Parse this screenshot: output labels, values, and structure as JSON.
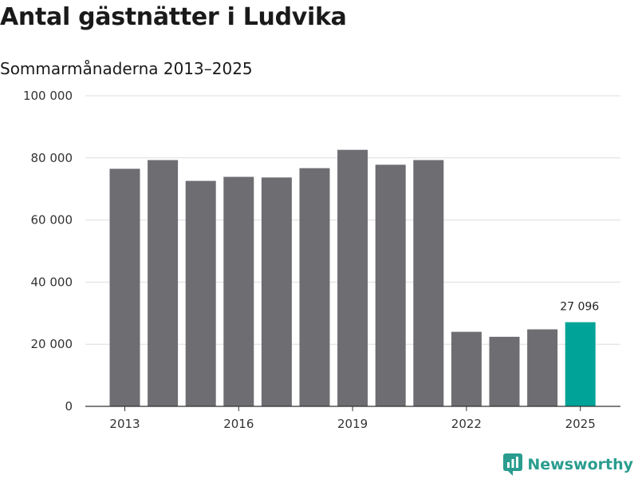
{
  "header": {
    "title": "Antal gästnätter i Ludvika",
    "subtitle": "Sommarmånaderna 2013–2025"
  },
  "brand": {
    "name": "Newsworthy",
    "icon": "newsworthy-logo-icon",
    "color": "#2a9d8f"
  },
  "chart_data": {
    "type": "bar",
    "title": "Antal gästnätter i Ludvika",
    "subtitle": "Sommarmånaderna 2013–2025",
    "xlabel": "",
    "ylabel": "",
    "categories": [
      "2013",
      "2014",
      "2015",
      "2016",
      "2017",
      "2018",
      "2019",
      "2020",
      "2021",
      "2022",
      "2023",
      "2024",
      "2025"
    ],
    "values": [
      76500,
      79300,
      72600,
      73900,
      73700,
      76700,
      82600,
      77800,
      79300,
      24000,
      22400,
      24800,
      27096
    ],
    "ylim": [
      0,
      100000
    ],
    "yticks": [
      0,
      20000,
      40000,
      60000,
      80000,
      100000
    ],
    "ytick_labels": [
      "0",
      "20 000",
      "40 000",
      "60 000",
      "80 000",
      "100 000"
    ],
    "xtick_labels": [
      "2013",
      "2016",
      "2019",
      "2022",
      "2025"
    ],
    "highlight_index": 12,
    "highlight_label": "27 096",
    "grid": true,
    "colors": {
      "bar": "#6e6d72",
      "highlight": "#00a397",
      "grid": "#dedede",
      "axis": "#333333"
    }
  }
}
